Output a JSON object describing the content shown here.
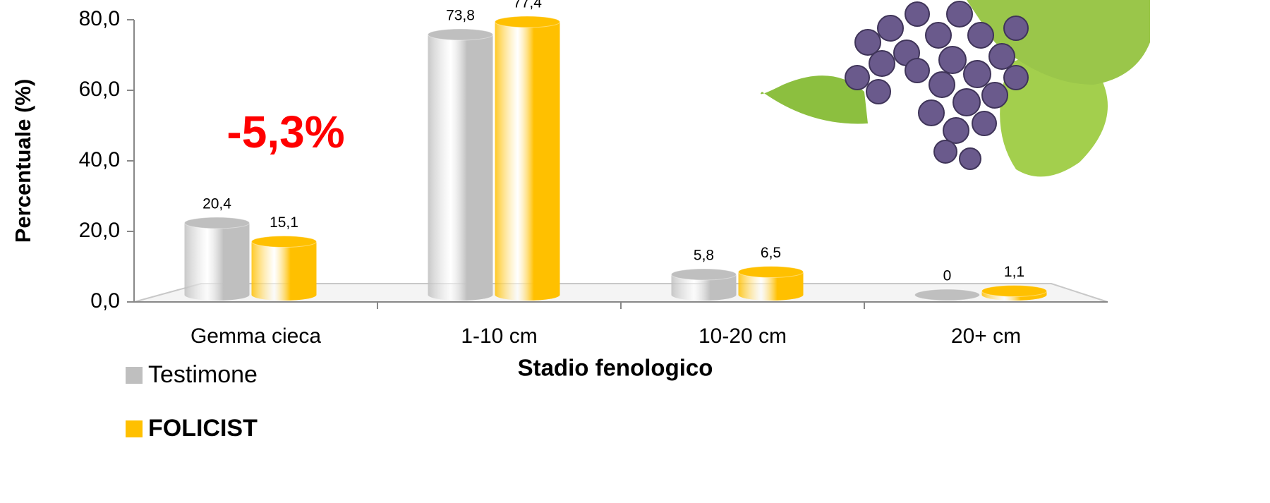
{
  "chart_data": {
    "type": "bar",
    "categories": [
      "Gemma cieca",
      "1-10 cm",
      "10-20 cm",
      "20+ cm"
    ],
    "series": [
      {
        "name": "Testimone",
        "color": "#bfbfbf",
        "values": [
          20.4,
          73.8,
          5.8,
          0
        ],
        "value_labels": [
          "20,4",
          "73,8",
          "5,8",
          "0"
        ]
      },
      {
        "name": "FOLICIST",
        "color": "#ffc000",
        "values": [
          15.1,
          77.4,
          6.5,
          1.1
        ],
        "value_labels": [
          "15,1",
          "77,4",
          "6,5",
          "1,1"
        ]
      }
    ],
    "ylim": [
      0,
      80
    ],
    "yticks": [
      {
        "value": 0,
        "label": "0,0"
      },
      {
        "value": 20,
        "label": "20,0"
      },
      {
        "value": 40,
        "label": "40,0"
      },
      {
        "value": 60,
        "label": "60,0"
      },
      {
        "value": 80,
        "label": "80,0"
      }
    ],
    "y_label": "Percentuale (%)",
    "x_label": "Stadio fenologico",
    "annotation": "-5,3%",
    "grid": false
  }
}
